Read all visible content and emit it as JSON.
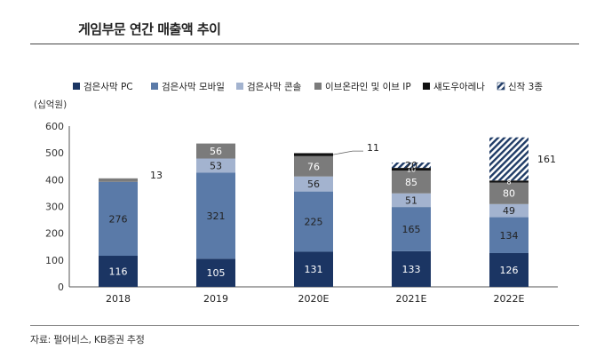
{
  "title": "게임부문 연간 매출액 추이",
  "source": "자료: 펄어비스, KB증권 추정",
  "chart_data": {
    "type": "bar",
    "stacked": true,
    "unit_label": "(십억원)",
    "categories": [
      "2018",
      "2019",
      "2020E",
      "2021E",
      "2022E"
    ],
    "ylim": [
      0,
      600
    ],
    "yticks": [
      0,
      100,
      200,
      300,
      400,
      500,
      600
    ],
    "legend_position": "top",
    "series": [
      {
        "name": "검은사막 PC",
        "color": "#1b3563",
        "values": [
          116,
          105,
          131,
          133,
          126
        ]
      },
      {
        "name": "검은사막 모바일",
        "color": "#5a7aa8",
        "values": [
          276,
          321,
          225,
          165,
          134
        ]
      },
      {
        "name": "검은사막 콘솔",
        "color": "#a3b3cf",
        "values": [
          0,
          53,
          56,
          51,
          49
        ]
      },
      {
        "name": "이브온라인 및 이브 IP",
        "color": "#7b7b7b",
        "values": [
          13,
          56,
          76,
          85,
          80
        ]
      },
      {
        "name": "섀도우아레나",
        "color": "#111111",
        "values": [
          0,
          0,
          11,
          10,
          8
        ]
      },
      {
        "name": "신작 3종",
        "color": "#1f3b66",
        "pattern": "hatch",
        "values": [
          0,
          0,
          0,
          20,
          161
        ]
      }
    ],
    "data_labels": [
      [
        "116",
        "105",
        "131",
        "133",
        "126"
      ],
      [
        "276",
        "321",
        "225",
        "165",
        "134"
      ],
      [
        "",
        "53",
        "56",
        "51",
        "49"
      ],
      [
        "13",
        "56",
        "76",
        "85",
        "80"
      ],
      [
        "",
        "",
        "11",
        "10",
        "8"
      ],
      [
        "",
        "",
        "",
        "20",
        "161"
      ]
    ]
  }
}
